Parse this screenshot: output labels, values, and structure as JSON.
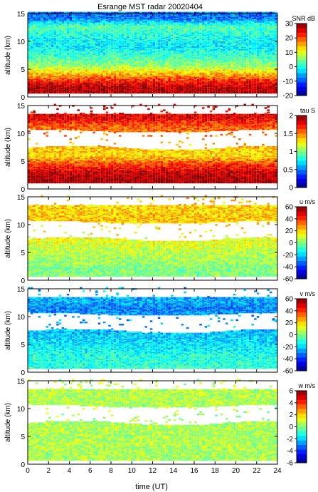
{
  "figure": {
    "title": "Esrange MST radar 20020404",
    "xlabel": "time (UT)",
    "x_ticks": [
      "0",
      "2",
      "4",
      "6",
      "8",
      "10",
      "12",
      "14",
      "16",
      "18",
      "20",
      "22",
      "24"
    ]
  },
  "chart_data": [
    {
      "type": "heatmap",
      "quantity": "SNR",
      "colorbar_label": "SNR dB",
      "colorbar_ticks": [
        "30",
        "20",
        "10",
        "0",
        "-10",
        "-20"
      ],
      "clim": [
        -20,
        30
      ],
      "xlim": [
        0,
        24
      ],
      "ylim": [
        0,
        15
      ],
      "ylabel": "altitude (km)",
      "y_ticks": [
        "15",
        "10",
        "5",
        "0"
      ],
      "layers": [
        {
          "alt": 1.5,
          "value": 28
        },
        {
          "alt": 2.5,
          "value": 24
        },
        {
          "alt": 3.5,
          "value": 18
        },
        {
          "alt": 4.5,
          "value": 12
        },
        {
          "alt": 5.5,
          "value": 6
        },
        {
          "alt": 7,
          "value": 2
        },
        {
          "alt": 9,
          "value": -2
        },
        {
          "alt": 11,
          "value": 0
        },
        {
          "alt": 12.5,
          "value": 3
        },
        {
          "alt": 14,
          "value": -8
        }
      ]
    },
    {
      "type": "heatmap",
      "quantity": "tau",
      "colorbar_label": "tau S",
      "colorbar_ticks": [
        "2",
        "1.5",
        "1",
        "0.5",
        "0"
      ],
      "clim": [
        0,
        2
      ],
      "xlim": [
        0,
        24
      ],
      "ylim": [
        0,
        15
      ],
      "ylabel": "altitude (km)",
      "y_ticks": [
        "15",
        "10",
        "5",
        "0"
      ],
      "layers": [
        {
          "alt": 1.5,
          "value": 1.95
        },
        {
          "alt": 3,
          "value": 1.85
        },
        {
          "alt": 4.5,
          "value": 1.6
        },
        {
          "alt": 6,
          "value": 1.3
        },
        {
          "alt": 11.5,
          "value": 1.6
        },
        {
          "alt": 12.5,
          "value": 1.8
        }
      ]
    },
    {
      "type": "heatmap",
      "quantity": "u",
      "colorbar_label": "u m/s",
      "colorbar_ticks": [
        "60",
        "40",
        "20",
        "0",
        "-20",
        "-40",
        "-60"
      ],
      "clim": [
        -60,
        60
      ],
      "xlim": [
        0,
        24
      ],
      "ylim": [
        0,
        15
      ],
      "ylabel": "altitude (km)",
      "y_ticks": [
        "15",
        "10",
        "5",
        "0"
      ],
      "layers": [
        {
          "alt": 2,
          "value": 0
        },
        {
          "alt": 4,
          "value": 5
        },
        {
          "alt": 6,
          "value": 10
        },
        {
          "alt": 11,
          "value": 22
        },
        {
          "alt": 12.5,
          "value": 20
        }
      ]
    },
    {
      "type": "heatmap",
      "quantity": "v",
      "colorbar_label": "v m/s",
      "colorbar_ticks": [
        "60",
        "40",
        "20",
        "0",
        "-20",
        "-40",
        "-60"
      ],
      "clim": [
        -60,
        60
      ],
      "xlim": [
        0,
        24
      ],
      "ylim": [
        0,
        15
      ],
      "ylabel": "altitude (km)",
      "y_ticks": [
        "15",
        "10",
        "5",
        "0"
      ],
      "layers": [
        {
          "alt": 2,
          "value": -10
        },
        {
          "alt": 4,
          "value": -15
        },
        {
          "alt": 6,
          "value": -20
        },
        {
          "alt": 11.5,
          "value": -30
        },
        {
          "alt": 12.5,
          "value": -25
        }
      ]
    },
    {
      "type": "heatmap",
      "quantity": "w",
      "colorbar_label": "w m/s",
      "colorbar_ticks": [
        "6",
        "4",
        "2",
        "0",
        "-2",
        "-4",
        "-6"
      ],
      "clim": [
        -6,
        6
      ],
      "xlim": [
        0,
        24
      ],
      "ylim": [
        0,
        15
      ],
      "ylabel": "altitude (km)",
      "y_ticks": [
        "15",
        "10",
        "5",
        "0"
      ],
      "layers": [
        {
          "alt": 2,
          "value": 0.5
        },
        {
          "alt": 4,
          "value": 0.5
        },
        {
          "alt": 6,
          "value": 0.5
        },
        {
          "alt": 11.5,
          "value": 0.6
        }
      ]
    }
  ]
}
